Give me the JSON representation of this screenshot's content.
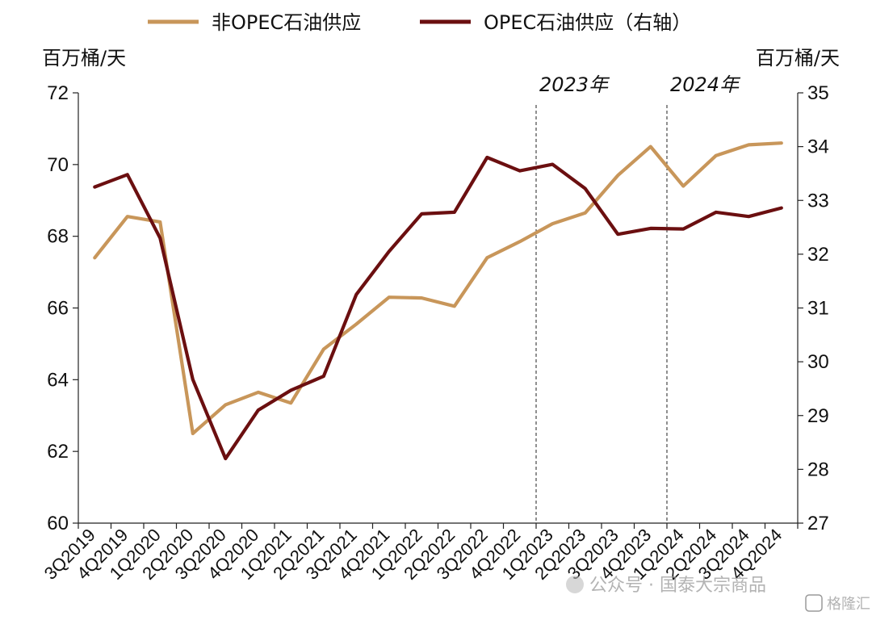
{
  "chart_data": {
    "type": "line",
    "legend_placement": "top",
    "grid": false,
    "left_unit": "百万桶/天",
    "right_unit": "百万桶/天",
    "x": [
      "3Q2019",
      "4Q2019",
      "1Q2020",
      "2Q2020",
      "3Q2020",
      "4Q2020",
      "1Q2021",
      "2Q2021",
      "3Q2021",
      "4Q2021",
      "1Q2022",
      "2Q2022",
      "3Q2022",
      "4Q2022",
      "1Q2023",
      "2Q2023",
      "3Q2023",
      "4Q2023",
      "1Q2024",
      "2Q2024",
      "3Q2024",
      "4Q2024"
    ],
    "y_left_ticks": [
      "60",
      "62",
      "64",
      "66",
      "68",
      "70",
      "72"
    ],
    "y_right_ticks": [
      "27",
      "28",
      "29",
      "30",
      "31",
      "32",
      "33",
      "34",
      "35"
    ],
    "ylim_left": [
      60,
      72
    ],
    "ylim_right": [
      27,
      35
    ],
    "series": [
      {
        "name": "非OPEC石油供应",
        "axis": "left",
        "color": "#c8965a",
        "values": [
          67.4,
          68.55,
          68.4,
          62.5,
          63.3,
          63.65,
          63.35,
          64.85,
          65.55,
          66.3,
          66.28,
          66.05,
          67.4,
          67.85,
          68.35,
          68.65,
          69.7,
          70.5,
          69.4,
          70.25,
          70.55,
          70.6
        ]
      },
      {
        "name": "OPEC石油供应（右轴）",
        "axis": "right",
        "color": "#6b0f10",
        "values": [
          33.25,
          33.48,
          32.3,
          29.67,
          28.2,
          29.1,
          29.47,
          29.73,
          31.25,
          32.05,
          32.75,
          32.78,
          33.8,
          33.55,
          33.67,
          33.22,
          32.37,
          32.48,
          32.47,
          32.78,
          32.7,
          32.86
        ]
      }
    ],
    "period_dividers": [
      {
        "label": "2023年",
        "at": "1Q2023"
      },
      {
        "label": "2024年",
        "at": "1Q2024"
      }
    ]
  },
  "watermark": {
    "text1": "公众号 · 国泰大宗商品",
    "text2": "格隆汇"
  }
}
